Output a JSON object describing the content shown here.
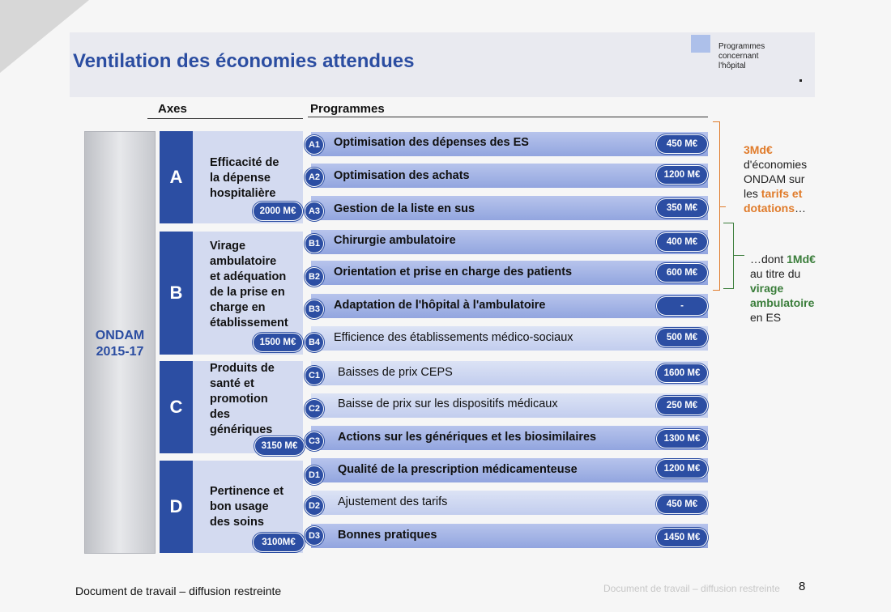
{
  "title": "Ventilation des économies attendues",
  "legend": {
    "label": "Programmes concernant l'hôpital",
    "swatch_color": "#adc0ea"
  },
  "headers": {
    "axes": "Axes",
    "programmes": "Programmes"
  },
  "ondam": {
    "line1": "ONDAM",
    "line2": "2015-17"
  },
  "axes": [
    {
      "letter": "A",
      "title_lines": [
        "Efficacité de",
        "la dépense",
        "hospitalière"
      ],
      "total": "2000 M€"
    },
    {
      "letter": "B",
      "title_lines": [
        "Virage",
        "ambulatoire",
        "et adéquation",
        "de la prise en",
        "charge en",
        "établissement"
      ],
      "total": "1500 M€"
    },
    {
      "letter": "C",
      "title_lines": [
        "Produits de",
        "santé et",
        "promotion",
        "des",
        "génériques"
      ],
      "total": "3150 M€"
    },
    {
      "letter": "D",
      "title_lines": [
        "Pertinence et",
        "bon usage",
        "des soins"
      ],
      "total": "3100M€"
    }
  ],
  "programs": [
    {
      "code": "A1",
      "label": "Optimisation des dépenses des ES",
      "amount": "450 M€",
      "hospital": true
    },
    {
      "code": "A2",
      "label": "Optimisation des achats",
      "amount": "1200 M€",
      "hospital": true
    },
    {
      "code": "A3",
      "label": "Gestion de la liste en sus",
      "amount": "350 M€",
      "hospital": true
    },
    {
      "code": "B1",
      "label": "Chirurgie ambulatoire",
      "amount": "400 M€",
      "hospital": true
    },
    {
      "code": "B2",
      "label": "Orientation et prise en charge des patients",
      "amount": "600 M€",
      "hospital": true
    },
    {
      "code": "B3",
      "label": "Adaptation de l'hôpital à l'ambulatoire",
      "amount": "-",
      "hospital": true
    },
    {
      "code": "B4",
      "label": "Efficience des établissements médico-sociaux",
      "amount": "500 M€",
      "hospital": false
    },
    {
      "code": "C1",
      "label": "Baisses de prix CEPS",
      "amount": "1600 M€",
      "hospital": false
    },
    {
      "code": "C2",
      "label": "Baisse de prix sur les dispositifs médicaux",
      "amount": "250 M€",
      "hospital": false
    },
    {
      "code": "C3",
      "label": "Actions sur les génériques et les biosimilaires",
      "amount": "1300 M€",
      "hospital": true
    },
    {
      "code": "D1",
      "label": "Qualité de la prescription médicamenteuse",
      "amount": "1200 M€",
      "hospital": true
    },
    {
      "code": "D2",
      "label": "Ajustement des tarifs",
      "amount": "450 M€",
      "hospital": false
    },
    {
      "code": "D3",
      "label": "Bonnes pratiques",
      "amount": "1450 M€",
      "hospital": true
    }
  ],
  "note1": {
    "highlight1": "3Md€",
    "text1": "d'économies",
    "text2": "ONDAM sur",
    "text3": "les ",
    "highlight2": "tarifs et",
    "highlight3": "dotations",
    "text4": "…"
  },
  "note2": {
    "text1": "…dont ",
    "highlight1": "1Md€",
    "text2": "au titre du",
    "highlight2": "virage",
    "highlight3": "ambulatoire",
    "text3": "en ES"
  },
  "footer": "Document de travail – diffusion restreinte",
  "page_number": "8",
  "ghost_footer": "Document de travail – diffusion restreinte",
  "colors": {
    "title": "#2b4da1",
    "axis_fill": "#2c4ea3",
    "orange": "#e07b2a",
    "green": "#3a7d3a"
  }
}
